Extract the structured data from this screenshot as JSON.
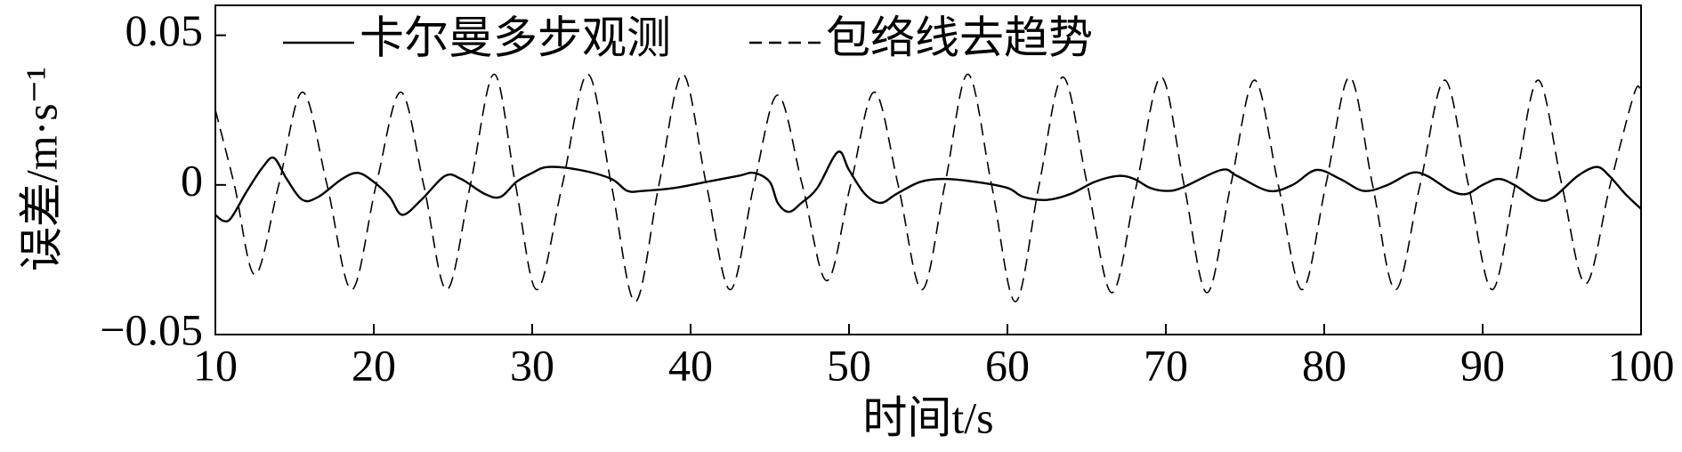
{
  "chart_data": {
    "type": "line",
    "x_label": "时间t/s",
    "y_label": "误差/m·s⁻¹",
    "xlim": [
      10,
      100
    ],
    "ylim": [
      -0.05,
      0.06
    ],
    "xticks": [
      10,
      20,
      30,
      40,
      50,
      60,
      70,
      80,
      90,
      100
    ],
    "yticks": [
      {
        "value": -0.05,
        "label": "−0.05"
      },
      0,
      0.05
    ],
    "series": [
      {
        "name": "卡尔曼多步观测",
        "color": "#000000",
        "dash": "solid",
        "x": [
          10,
          10.5,
          11,
          12,
          13,
          13.7,
          14.5,
          15.5,
          16.5,
          18,
          19,
          20,
          21,
          21.8,
          23,
          24.5,
          25.5,
          27,
          28,
          29,
          30,
          31,
          33,
          35,
          36,
          37,
          39,
          41,
          43,
          44,
          45,
          45.5,
          46.2,
          47,
          48,
          49.3,
          50,
          51,
          52,
          53,
          54.5,
          56,
          58,
          60,
          61,
          62.5,
          64,
          65.5,
          67,
          68,
          69,
          70,
          71,
          73.5,
          74.5,
          76.5,
          78,
          79.5,
          81,
          82.5,
          84,
          85.5,
          86.5,
          88,
          89,
          90,
          91,
          92,
          93.5,
          94.5,
          96,
          97.2,
          98,
          99,
          100
        ],
        "values": [
          -0.01,
          -0.012,
          -0.011,
          -0.002,
          0.006,
          0.009,
          0.002,
          -0.005,
          -0.004,
          0.002,
          0.004,
          0.001,
          -0.004,
          -0.01,
          -0.005,
          0.003,
          0.002,
          -0.003,
          -0.004,
          0.001,
          0.004,
          0.006,
          0.005,
          0.002,
          -0.002,
          -0.002,
          -0.001,
          0.001,
          0.003,
          0.004,
          0.001,
          -0.006,
          -0.009,
          -0.006,
          -0.001,
          0.011,
          0.005,
          -0.003,
          -0.006,
          -0.003,
          0.001,
          0.002,
          0.001,
          -0.001,
          -0.004,
          -0.005,
          -0.003,
          0.001,
          0.003,
          0.002,
          -0.001,
          -0.002,
          -0.001,
          0.005,
          0.003,
          -0.002,
          0.0,
          0.005,
          0.002,
          -0.002,
          0.0,
          0.004,
          0.003,
          -0.002,
          -0.003,
          0.0,
          0.002,
          0.0,
          -0.005,
          -0.004,
          0.003,
          0.006,
          0.003,
          -0.003,
          -0.008
        ]
      },
      {
        "name": "包络线去趋势",
        "color": "#000000",
        "dash": "dashed",
        "x": [
          10,
          11.2,
          12.5,
          14,
          15.5,
          17.05,
          18.6,
          20.15,
          21.7,
          23.15,
          24.6,
          26.1,
          27.6,
          28.95,
          30.3,
          31.9,
          33.5,
          35,
          36.5,
          38,
          39.5,
          41,
          42.5,
          44,
          45.5,
          47.05,
          48.6,
          50.1,
          51.6,
          53.1,
          54.6,
          56.05,
          57.5,
          59,
          60.5,
          62,
          63.5,
          65.05,
          66.6,
          68.15,
          69.7,
          71.15,
          72.6,
          74.1,
          75.6,
          77.1,
          78.6,
          80.1,
          81.6,
          83.05,
          84.5,
          86.05,
          87.6,
          89.1,
          90.6,
          92.05,
          93.5,
          95,
          96.5,
          98.05,
          99.6,
          100
        ],
        "values": [
          0.025,
          0,
          -0.03,
          0,
          0.031,
          0,
          -0.035,
          0,
          0.031,
          0,
          -0.035,
          0,
          0.037,
          0,
          -0.035,
          0,
          0.037,
          0,
          -0.039,
          0,
          0.037,
          0,
          -0.035,
          0,
          0.03,
          0,
          -0.032,
          0,
          0.031,
          0,
          -0.035,
          0,
          0.037,
          0,
          -0.039,
          0,
          0.036,
          0,
          -0.036,
          0,
          0.036,
          0,
          -0.036,
          0,
          0.035,
          0,
          -0.035,
          0,
          0.036,
          0,
          -0.035,
          0,
          0.035,
          0,
          -0.035,
          0,
          0.035,
          0,
          -0.033,
          0,
          0.031,
          0.03
        ]
      }
    ]
  }
}
